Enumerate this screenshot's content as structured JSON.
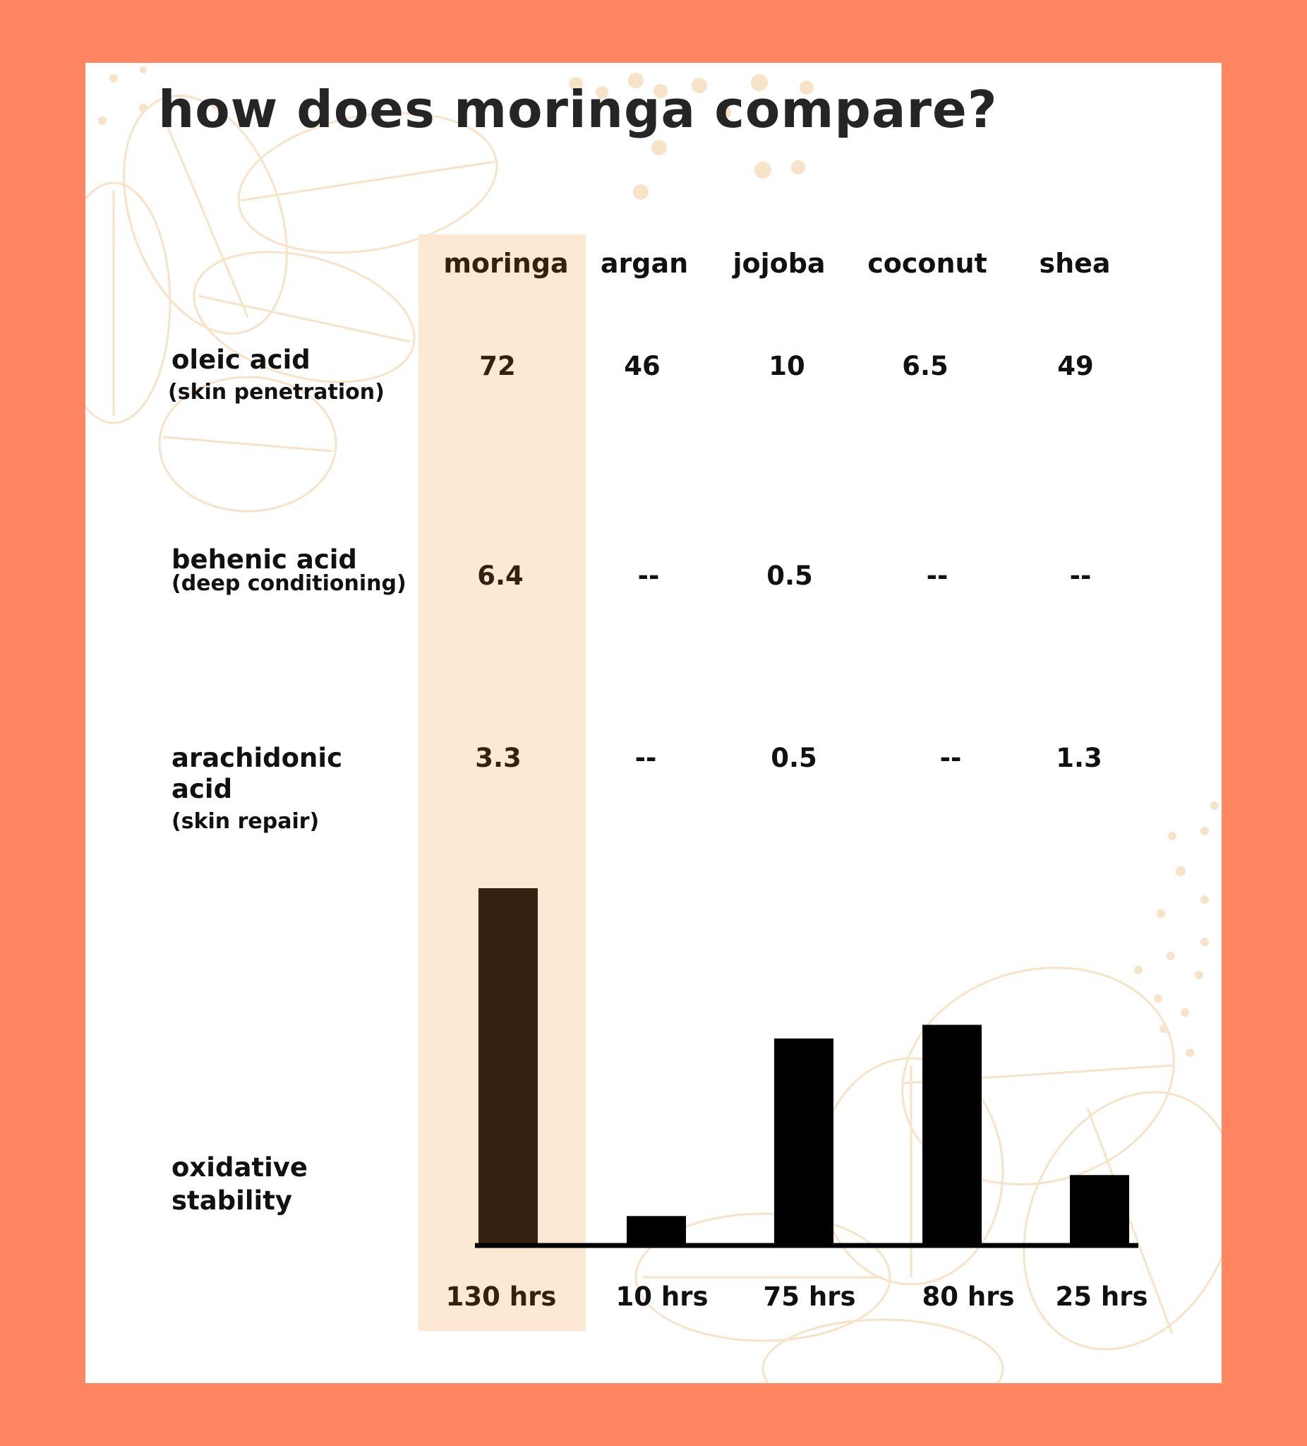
{
  "title": "how does moringa compare?",
  "columns": [
    "moringa",
    "argan",
    "jojoba",
    "coconut",
    "shea"
  ],
  "rows": [
    {
      "name": "oleic acid",
      "desc": "(skin penetration)",
      "values": [
        "72",
        "46",
        "10",
        "6.5",
        "49"
      ]
    },
    {
      "name": "behenic acid",
      "desc": "(deep conditioning)",
      "values": [
        "6.4",
        "--",
        "0.5",
        "--",
        "--"
      ]
    },
    {
      "name_line1": "arachidonic",
      "name_line2": "acid",
      "desc": "(skin repair)",
      "values": [
        "3.3",
        "--",
        "0.5",
        "--",
        "1.3"
      ]
    }
  ],
  "stability": {
    "label_line1": "oxidative",
    "label_line2": "stability"
  },
  "colors": {
    "background": "#FF8660",
    "card": "#FFFFFF",
    "highlight": "#FCE8D3",
    "moringa_bar": "#362110",
    "bar": "#000000",
    "decoration": "#F6E3C8"
  },
  "chart_data": {
    "type": "bar",
    "categories": [
      "moringa",
      "argan",
      "jojoba",
      "coconut",
      "shea"
    ],
    "values": [
      130,
      10,
      75,
      80,
      25
    ],
    "value_labels": [
      "130 hrs",
      "10 hrs",
      "75 hrs",
      "80 hrs",
      "25 hrs"
    ],
    "unit": "hrs",
    "xlabel": "",
    "ylabel": "oxidative stability",
    "ylim": [
      0,
      130
    ],
    "grid": false,
    "highlight": "moringa"
  }
}
